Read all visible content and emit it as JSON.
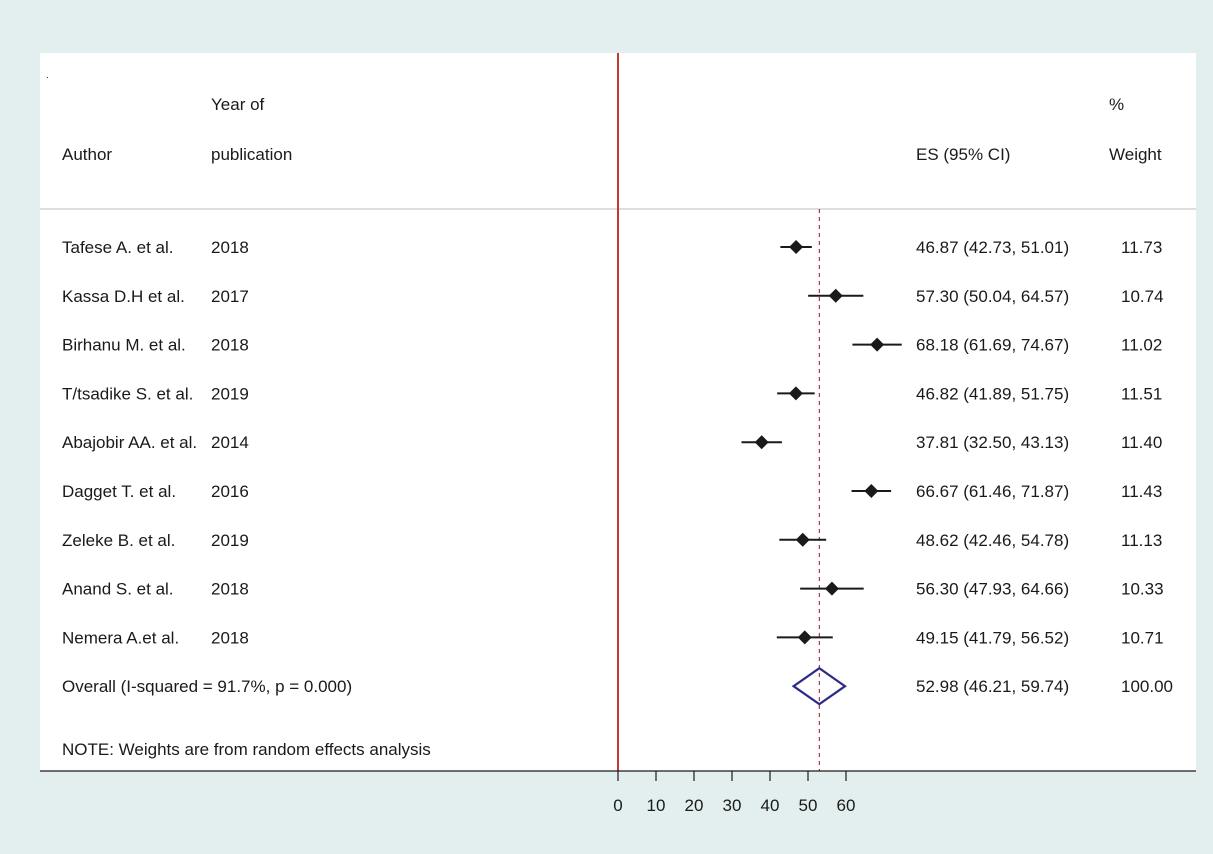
{
  "chart_data": {
    "type": "forest",
    "headers": {
      "author": "Author",
      "year_line1": "Year of",
      "year_line2": "publication",
      "es": "ES (95% CI)",
      "weight_line1": "%",
      "weight_line2": "Weight"
    },
    "studies": [
      {
        "author": "Tafese A. et al.",
        "year": "2018",
        "es": 46.87,
        "lo": 42.73,
        "hi": 51.01,
        "es_text": "46.87 (42.73, 51.01)",
        "weight": "11.73"
      },
      {
        "author": "Kassa D.H et al.",
        "year": "2017",
        "es": 57.3,
        "lo": 50.04,
        "hi": 64.57,
        "es_text": "57.30 (50.04, 64.57)",
        "weight": "10.74"
      },
      {
        "author": "Birhanu M. et al.",
        "year": "2018",
        "es": 68.18,
        "lo": 61.69,
        "hi": 74.67,
        "es_text": "68.18 (61.69, 74.67)",
        "weight": "11.02"
      },
      {
        "author": "T/tsadike S. et al.",
        "year": "2019",
        "es": 46.82,
        "lo": 41.89,
        "hi": 51.75,
        "es_text": "46.82 (41.89, 51.75)",
        "weight": "11.51"
      },
      {
        "author": "Abajobir AA. et al.",
        "year": "2014",
        "es": 37.81,
        "lo": 32.5,
        "hi": 43.13,
        "es_text": "37.81 (32.50, 43.13)",
        "weight": "11.40"
      },
      {
        "author": "Dagget T. et al.",
        "year": "2016",
        "es": 66.67,
        "lo": 61.46,
        "hi": 71.87,
        "es_text": "66.67 (61.46, 71.87)",
        "weight": "11.43"
      },
      {
        "author": "Zeleke B. et al.",
        "year": "2019",
        "es": 48.62,
        "lo": 42.46,
        "hi": 54.78,
        "es_text": "48.62 (42.46, 54.78)",
        "weight": "11.13"
      },
      {
        "author": "Anand S. et al.",
        "year": "2018",
        "es": 56.3,
        "lo": 47.93,
        "hi": 64.66,
        "es_text": "56.30 (47.93, 64.66)",
        "weight": "10.33"
      },
      {
        "author": "Nemera A.et al.",
        "year": "2018",
        "es": 49.15,
        "lo": 41.79,
        "hi": 56.52,
        "es_text": "49.15 (41.79, 56.52)",
        "weight": "10.71"
      }
    ],
    "overall": {
      "label": "Overall  (I-squared = 91.7%, p = 0.000)",
      "es": 52.98,
      "lo": 46.21,
      "hi": 59.74,
      "es_text": "52.98 (46.21, 59.74)",
      "weight": "100.00"
    },
    "note": "NOTE: Weights are from random effects analysis",
    "x_ticks": [
      0,
      10,
      20,
      30,
      40,
      50,
      60
    ],
    "null_line": 0,
    "colors": {
      "marker": "#1a1a1a",
      "diamond": "#2e2a8a",
      "null_line": "#c0392b",
      "overall_line": "#8b1a2e",
      "background": "#e3eeee",
      "panel": "#ffffff"
    }
  }
}
